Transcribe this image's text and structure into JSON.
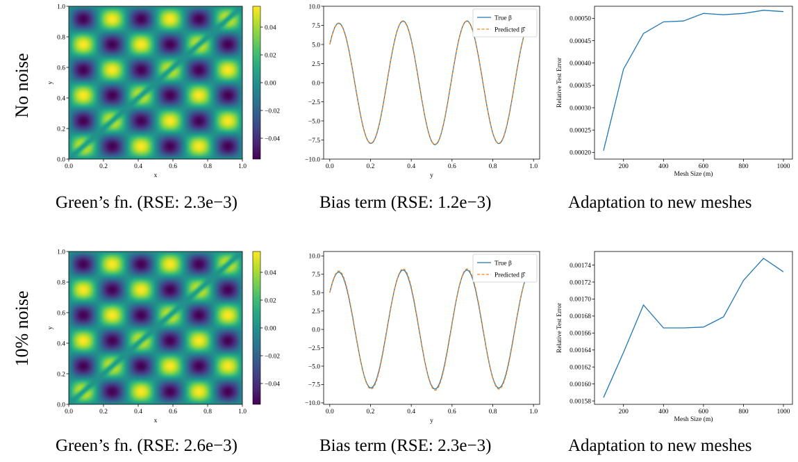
{
  "rows": [
    {
      "label": "No noise",
      "captions": [
        "Green’s fn. (RSE: 2.3e−3)",
        "Bias term (RSE: 1.2e−3)",
        "Adaptation to new meshes"
      ]
    },
    {
      "label": "10% noise",
      "captions": [
        "Green’s fn. (RSE: 2.6e−3)",
        "Bias term (RSE: 2.3e−3)",
        "Adaptation to new meshes"
      ]
    }
  ],
  "chart_data": [
    {
      "type": "heatmap",
      "panel": "no-noise-green",
      "xlabel": "x",
      "ylabel": "y",
      "xlim": [
        0,
        1
      ],
      "ylim": [
        0,
        1
      ],
      "xticks": [
        "0.0",
        "0.2",
        "0.4",
        "0.6",
        "0.8",
        "1.0"
      ],
      "yticks": [
        "0.0",
        "0.2",
        "0.4",
        "0.6",
        "0.8",
        "1.0"
      ],
      "colormap": "viridis",
      "colorbar": {
        "min": -0.055,
        "max": 0.055,
        "ticks": [
          0.04,
          0.02,
          0.0,
          -0.02,
          -0.04
        ],
        "tick_labels": [
          "0.04",
          "0.02",
          "0.00",
          "−0.02",
          "−0.04"
        ]
      },
      "frequency": 3
    },
    {
      "type": "line",
      "panel": "no-noise-bias",
      "xlabel": "y",
      "ylabel": "",
      "xlim": [
        -0.03,
        1.03
      ],
      "ylim": [
        -10,
        10
      ],
      "xticks": [
        "0.0",
        "0.2",
        "0.4",
        "0.6",
        "0.8",
        "1.0"
      ],
      "yticks": [
        "10.0",
        "7.5",
        "5.0",
        "2.5",
        "0.0",
        "−2.5",
        "−5.0",
        "−7.5",
        "−10.0"
      ],
      "legend_position": "top-right",
      "series": [
        {
          "name": "True β",
          "color": "#1f77b4",
          "style": "solid",
          "amplitude": 9.1
        },
        {
          "name": "Predicted β̂",
          "color": "#ff7f0e",
          "style": "dashed",
          "amplitude": 9.0
        }
      ]
    },
    {
      "type": "line",
      "panel": "no-noise-adaptation",
      "xlabel": "Mesh Size (m)",
      "ylabel": "Relative Test Error",
      "xlim": [
        55,
        1045
      ],
      "ylim": [
        0.000185,
        0.000527
      ],
      "xticks": [
        "200",
        "400",
        "600",
        "800",
        "1000"
      ],
      "yticks": [
        "0.00050",
        "0.00045",
        "0.00040",
        "0.00035",
        "0.00030",
        "0.00025",
        "0.00020"
      ],
      "series": [
        {
          "name": "",
          "color": "#1f77b4",
          "x": [
            100,
            200,
            300,
            400,
            500,
            600,
            700,
            800,
            900,
            1000
          ],
          "y": [
            0.000204,
            0.000386,
            0.000466,
            0.000492,
            0.000494,
            0.000511,
            0.000508,
            0.000511,
            0.000518,
            0.000515
          ]
        }
      ]
    },
    {
      "type": "heatmap",
      "panel": "noise-green",
      "xlabel": "x",
      "ylabel": "y",
      "xlim": [
        0,
        1
      ],
      "ylim": [
        0,
        1
      ],
      "xticks": [
        "0.0",
        "0.2",
        "0.4",
        "0.6",
        "0.8",
        "1.0"
      ],
      "yticks": [
        "0.0",
        "0.2",
        "0.4",
        "0.6",
        "0.8",
        "1.0"
      ],
      "colormap": "viridis",
      "colorbar": {
        "min": -0.055,
        "max": 0.055,
        "ticks": [
          0.04,
          0.02,
          0.0,
          -0.02,
          -0.04
        ],
        "tick_labels": [
          "0.04",
          "0.02",
          "0.00",
          "−0.02",
          "−0.04"
        ]
      },
      "frequency": 3
    },
    {
      "type": "line",
      "panel": "noise-bias",
      "xlabel": "y",
      "ylabel": "",
      "xlim": [
        -0.03,
        1.03
      ],
      "ylim": [
        -10.2,
        10.6
      ],
      "xticks": [
        "0.0",
        "0.2",
        "0.4",
        "0.6",
        "0.8",
        "1.0"
      ],
      "yticks": [
        "10.0",
        "7.5",
        "5.0",
        "2.5",
        "0.0",
        "−2.5",
        "−5.0",
        "−7.5",
        "−10.0"
      ],
      "legend_position": "top-right",
      "series": [
        {
          "name": "True β",
          "color": "#1f77b4",
          "style": "solid",
          "amplitude": 9.1
        },
        {
          "name": "Predicted β̂",
          "color": "#ff7f0e",
          "style": "dashed",
          "amplitude": 9.4
        }
      ]
    },
    {
      "type": "line",
      "panel": "noise-adaptation",
      "xlabel": "Mesh Size (m)",
      "ylabel": "Relative Test Error",
      "xlim": [
        55,
        1045
      ],
      "ylim": [
        0.001576,
        0.001756
      ],
      "xticks": [
        "200",
        "400",
        "600",
        "800",
        "1000"
      ],
      "yticks": [
        "0.00174",
        "0.00172",
        "0.00170",
        "0.00168",
        "0.00166",
        "0.00164",
        "0.00162",
        "0.00160",
        "0.00158"
      ],
      "series": [
        {
          "name": "",
          "color": "#1f77b4",
          "x": [
            100,
            200,
            300,
            400,
            500,
            600,
            700,
            800,
            900,
            1000
          ],
          "y": [
            0.001584,
            0.001637,
            0.001693,
            0.001666,
            0.001666,
            0.001667,
            0.001679,
            0.001722,
            0.001748,
            0.001732
          ]
        }
      ]
    }
  ]
}
